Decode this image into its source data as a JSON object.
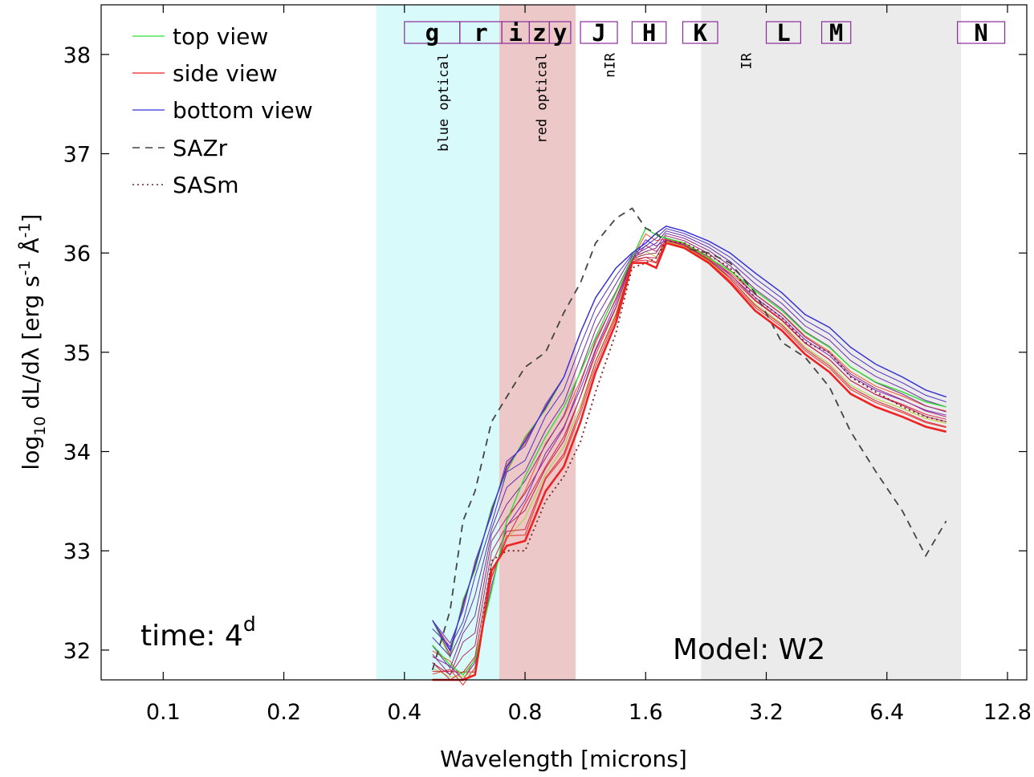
{
  "chart_data": {
    "type": "line",
    "title": "",
    "xlabel": "Wavelength [microns]",
    "ylabel": "log10 dL/dλ [erg s-1 Å-1]",
    "ylabel_parts": {
      "pre": "log",
      "sub": "10",
      "mid": " dL/dλ [erg s",
      "sup1": "-1",
      "mid2": " Å",
      "sup2": "-1",
      "post": "]"
    },
    "xscale": "log2",
    "xlim": [
      0.07,
      14.3
    ],
    "ylim": [
      31.7,
      38.5
    ],
    "x_ticks": [
      0.1,
      0.2,
      0.4,
      0.8,
      1.6,
      3.2,
      6.4,
      12.8
    ],
    "x_tick_labels": [
      "0.1",
      "0.2",
      "0.4",
      "0.8",
      "1.6",
      "3.2",
      "6.4",
      "12.8"
    ],
    "y_ticks": [
      32,
      33,
      34,
      35,
      36,
      37,
      38
    ],
    "y_tick_labels": [
      "32",
      "33",
      "34",
      "35",
      "36",
      "37",
      "38"
    ],
    "bands": [
      {
        "name": "blue optical",
        "x": [
          0.34,
          0.69
        ],
        "color": "#d8fafa"
      },
      {
        "name": "red optical",
        "x": [
          0.69,
          1.07
        ],
        "color": "#ecc8c8"
      },
      {
        "name": "nIR",
        "x": [
          1.07,
          2.2
        ],
        "color": "#ffffff"
      },
      {
        "name": "IR",
        "x": [
          2.2,
          9.8
        ],
        "color": "#ebebeb"
      }
    ],
    "band_labels": [
      {
        "text": "blue optical",
        "x": 0.5
      },
      {
        "text": "red optical",
        "x": 0.88
      },
      {
        "text": "nIR",
        "x": 1.3
      },
      {
        "text": "IR",
        "x": 2.85
      }
    ],
    "filters": [
      {
        "name": "g",
        "x": [
          0.4,
          0.55
        ]
      },
      {
        "name": "r",
        "x": [
          0.55,
          0.7
        ]
      },
      {
        "name": "i",
        "x": [
          0.7,
          0.82
        ]
      },
      {
        "name": "z",
        "x": [
          0.82,
          0.92
        ]
      },
      {
        "name": "y",
        "x": [
          0.92,
          1.04
        ]
      },
      {
        "name": "J",
        "x": [
          1.1,
          1.36
        ]
      },
      {
        "name": "H",
        "x": [
          1.48,
          1.8
        ]
      },
      {
        "name": "K",
        "x": [
          1.98,
          2.42
        ]
      },
      {
        "name": "L",
        "x": [
          3.2,
          3.9
        ]
      },
      {
        "name": "M",
        "x": [
          4.4,
          5.2
        ]
      },
      {
        "name": "N",
        "x": [
          9.6,
          12.6
        ]
      }
    ],
    "x": [
      0.47,
      0.52,
      0.56,
      0.6,
      0.66,
      0.72,
      0.8,
      0.9,
      1.0,
      1.1,
      1.2,
      1.35,
      1.48,
      1.6,
      1.7,
      1.8,
      2.0,
      2.3,
      2.6,
      3.0,
      3.5,
      4.0,
      4.6,
      5.2,
      6.0,
      7.0,
      8.0,
      9.0
    ],
    "series": [
      {
        "name": "top view",
        "role": "legend",
        "color": "#33dd33",
        "style": "solid",
        "values": [
          32.05,
          31.85,
          31.75,
          31.9,
          32.6,
          33.3,
          33.75,
          34.15,
          34.45,
          34.8,
          35.15,
          35.6,
          35.95,
          36.25,
          36.18,
          36.15,
          36.1,
          35.95,
          35.82,
          35.62,
          35.42,
          35.2,
          35.05,
          34.85,
          34.7,
          34.6,
          34.5,
          34.45
        ]
      },
      {
        "name": "side view",
        "role": "legend",
        "color": "#ee2222",
        "style": "solid",
        "values": [
          31.7,
          31.7,
          31.7,
          31.75,
          32.8,
          33.05,
          33.1,
          33.6,
          33.85,
          34.3,
          34.8,
          35.3,
          35.9,
          35.9,
          35.85,
          36.1,
          36.05,
          35.9,
          35.7,
          35.42,
          35.22,
          34.98,
          34.8,
          34.58,
          34.45,
          34.35,
          34.25,
          34.2
        ]
      },
      {
        "name": "bottom view",
        "role": "legend",
        "color": "#3333dd",
        "style": "solid",
        "values": [
          32.3,
          32.0,
          32.45,
          32.85,
          33.4,
          33.85,
          34.1,
          34.45,
          34.75,
          35.2,
          35.55,
          35.85,
          36.0,
          36.1,
          36.2,
          36.27,
          36.22,
          36.12,
          36.0,
          35.8,
          35.6,
          35.38,
          35.25,
          35.05,
          34.88,
          34.75,
          34.62,
          34.55
        ]
      },
      {
        "name": "SAZr",
        "role": "legend",
        "color": "#444444",
        "style": "dashed",
        "values": [
          31.8,
          32.4,
          33.3,
          33.6,
          34.3,
          34.55,
          34.85,
          35.0,
          35.4,
          35.7,
          36.1,
          36.35,
          36.45,
          36.25,
          36.2,
          36.1,
          36.05,
          36.0,
          35.9,
          35.6,
          35.1,
          34.95,
          34.65,
          34.2,
          33.8,
          33.4,
          32.95,
          33.3
        ]
      },
      {
        "name": "SASm",
        "role": "legend",
        "color": "#7a1e1e",
        "style": "dotted",
        "values": [
          31.7,
          31.7,
          31.7,
          31.75,
          32.9,
          33.0,
          33.0,
          33.5,
          33.75,
          34.1,
          34.6,
          35.2,
          35.85,
          35.9,
          35.95,
          36.12,
          36.1,
          35.98,
          35.85,
          35.55,
          35.35,
          35.1,
          35.0,
          34.75,
          34.6,
          34.45,
          34.35,
          34.3
        ]
      }
    ],
    "legend": {
      "position": "top-left",
      "entries": [
        "top view",
        "side view",
        "bottom view",
        "SAZr",
        "SASm"
      ]
    },
    "annotations": {
      "time_prefix": "time: 4",
      "time_sup": "d",
      "model": "Model: W2"
    }
  }
}
